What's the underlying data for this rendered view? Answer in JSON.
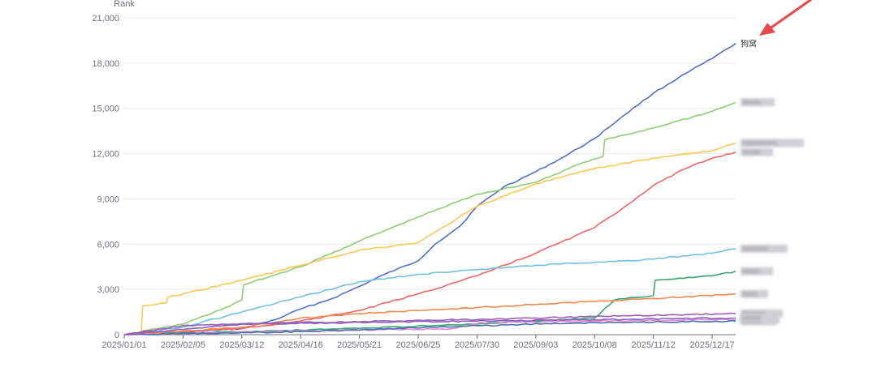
{
  "chart_data": {
    "type": "line",
    "title": "",
    "xlabel": "",
    "ylabel": "Rank",
    "ylim": [
      0,
      21000
    ],
    "yticks": [
      0,
      3000,
      6000,
      9000,
      12000,
      15000,
      18000,
      21000
    ],
    "ytick_labels": [
      "0",
      "3,000",
      "6,000",
      "9,000",
      "12,000",
      "15,000",
      "18,000",
      "21,000"
    ],
    "xlim": [
      "2025-01-01",
      "2025-12-31"
    ],
    "xticks": [
      "2025-01-01",
      "2025-02-05",
      "2025-03-12",
      "2025-04-16",
      "2025-05-21",
      "2025-06-25",
      "2025-07-30",
      "2025-09-03",
      "2025-10-08",
      "2025-11-12",
      "2025-12-17"
    ],
    "xtick_labels": [
      "2025/01/01",
      "2025/02/05",
      "2025/03/12",
      "2025/04/16",
      "2025/05/21",
      "2025/06/25",
      "2025/07/30",
      "2025/09/03",
      "2025/10/08",
      "2025/11/12",
      "2025/12/17"
    ],
    "grid": true,
    "series": [
      {
        "name": "狗窝",
        "color": "#5470c6",
        "label_visible": true,
        "points": [
          [
            "2025-01-01",
            0
          ],
          [
            "2025-02-05",
            150
          ],
          [
            "2025-03-12",
            400
          ],
          [
            "2025-04-01",
            1000
          ],
          [
            "2025-04-16",
            1700
          ],
          [
            "2025-05-05",
            2400
          ],
          [
            "2025-05-21",
            3200
          ],
          [
            "2025-06-05",
            4000
          ],
          [
            "2025-06-25",
            4900
          ],
          [
            "2025-07-05",
            6000
          ],
          [
            "2025-07-20",
            7200
          ],
          [
            "2025-07-30",
            8500
          ],
          [
            "2025-08-15",
            9800
          ],
          [
            "2025-09-03",
            10800
          ],
          [
            "2025-09-20",
            11800
          ],
          [
            "2025-10-08",
            13000
          ],
          [
            "2025-10-25",
            14500
          ],
          [
            "2025-11-12",
            16000
          ],
          [
            "2025-12-01",
            17300
          ],
          [
            "2025-12-17",
            18300
          ],
          [
            "2025-12-31",
            19300
          ]
        ]
      },
      {
        "name": "",
        "color": "#91cc75",
        "label_visible": false,
        "points": [
          [
            "2025-01-01",
            0
          ],
          [
            "2025-02-05",
            700
          ],
          [
            "2025-03-05",
            1900
          ],
          [
            "2025-03-12",
            2300
          ],
          [
            "2025-03-13",
            3300
          ],
          [
            "2025-04-16",
            4500
          ],
          [
            "2025-05-21",
            6200
          ],
          [
            "2025-06-25",
            7800
          ],
          [
            "2025-07-30",
            9300
          ],
          [
            "2025-09-03",
            10100
          ],
          [
            "2025-10-01",
            11400
          ],
          [
            "2025-10-13",
            11800
          ],
          [
            "2025-10-14",
            12900
          ],
          [
            "2025-11-12",
            13700
          ],
          [
            "2025-12-17",
            14800
          ],
          [
            "2025-12-31",
            15400
          ]
        ]
      },
      {
        "name": "",
        "color": "#fac858",
        "label_visible": false,
        "points": [
          [
            "2025-01-01",
            0
          ],
          [
            "2025-01-11",
            0
          ],
          [
            "2025-01-12",
            1900
          ],
          [
            "2025-01-26",
            2100
          ],
          [
            "2025-01-27",
            2500
          ],
          [
            "2025-02-05",
            2700
          ],
          [
            "2025-03-12",
            3600
          ],
          [
            "2025-04-16",
            4600
          ],
          [
            "2025-05-21",
            5600
          ],
          [
            "2025-06-25",
            6100
          ],
          [
            "2025-07-30",
            8500
          ],
          [
            "2025-09-03",
            10000
          ],
          [
            "2025-10-08",
            11000
          ],
          [
            "2025-11-12",
            11700
          ],
          [
            "2025-12-17",
            12200
          ],
          [
            "2025-12-31",
            12700
          ]
        ]
      },
      {
        "name": "",
        "color": "#ee6666",
        "label_visible": false,
        "points": [
          [
            "2025-01-01",
            0
          ],
          [
            "2025-03-12",
            400
          ],
          [
            "2025-04-16",
            900
          ],
          [
            "2025-05-21",
            1600
          ],
          [
            "2025-06-25",
            2700
          ],
          [
            "2025-07-30",
            3900
          ],
          [
            "2025-09-03",
            5400
          ],
          [
            "2025-10-08",
            7100
          ],
          [
            "2025-10-25",
            8400
          ],
          [
            "2025-11-12",
            9900
          ],
          [
            "2025-12-01",
            11000
          ],
          [
            "2025-12-17",
            11700
          ],
          [
            "2025-12-31",
            12100
          ]
        ]
      },
      {
        "name": "",
        "color": "#73c0de",
        "label_visible": false,
        "points": [
          [
            "2025-01-01",
            0
          ],
          [
            "2025-02-05",
            500
          ],
          [
            "2025-03-12",
            1500
          ],
          [
            "2025-04-16",
            2500
          ],
          [
            "2025-05-21",
            3500
          ],
          [
            "2025-06-25",
            4000
          ],
          [
            "2025-07-30",
            4300
          ],
          [
            "2025-09-03",
            4600
          ],
          [
            "2025-10-08",
            4800
          ],
          [
            "2025-11-12",
            5000
          ],
          [
            "2025-12-17",
            5400
          ],
          [
            "2025-12-31",
            5700
          ]
        ]
      },
      {
        "name": "",
        "color": "#3ba272",
        "label_visible": false,
        "points": [
          [
            "2025-01-01",
            0
          ],
          [
            "2025-04-16",
            300
          ],
          [
            "2025-07-30",
            700
          ],
          [
            "2025-09-03",
            900
          ],
          [
            "2025-10-08",
            1100
          ],
          [
            "2025-10-20",
            2300
          ],
          [
            "2025-11-12",
            2600
          ],
          [
            "2025-11-13",
            3600
          ],
          [
            "2025-12-17",
            3900
          ],
          [
            "2025-12-31",
            4200
          ]
        ]
      },
      {
        "name": "",
        "color": "#ee8a4e",
        "label_visible": false,
        "points": [
          [
            "2025-01-01",
            0
          ],
          [
            "2025-03-12",
            500
          ],
          [
            "2025-04-16",
            1100
          ],
          [
            "2025-05-21",
            1400
          ],
          [
            "2025-06-25",
            1600
          ],
          [
            "2025-07-30",
            1800
          ],
          [
            "2025-09-03",
            2000
          ],
          [
            "2025-10-08",
            2200
          ],
          [
            "2025-11-12",
            2400
          ],
          [
            "2025-12-31",
            2700
          ]
        ]
      },
      {
        "name": "",
        "color": "#9a60b4",
        "label_visible": false,
        "points": [
          [
            "2025-01-01",
            0
          ],
          [
            "2025-02-05",
            600
          ],
          [
            "2025-04-16",
            800
          ],
          [
            "2025-07-30",
            1000
          ],
          [
            "2025-10-08",
            1200
          ],
          [
            "2025-12-31",
            1400
          ]
        ]
      },
      {
        "name": "",
        "color": "#e58ad1",
        "label_visible": false,
        "points": [
          [
            "2025-01-01",
            0
          ],
          [
            "2025-05-21",
            300
          ],
          [
            "2025-07-15",
            400
          ],
          [
            "2025-08-01",
            800
          ],
          [
            "2025-10-08",
            900
          ],
          [
            "2025-12-31",
            1000
          ]
        ]
      },
      {
        "name": "",
        "color": "#4a6fb0",
        "label_visible": false,
        "points": [
          [
            "2025-01-01",
            0
          ],
          [
            "2025-04-16",
            200
          ],
          [
            "2025-07-30",
            600
          ],
          [
            "2025-10-08",
            800
          ],
          [
            "2025-12-31",
            900
          ]
        ]
      },
      {
        "name": "",
        "color": "#8b5fbf",
        "label_visible": false,
        "points": [
          [
            "2025-01-01",
            0
          ],
          [
            "2025-03-12",
            700
          ],
          [
            "2025-07-30",
            900
          ],
          [
            "2025-12-31",
            1100
          ]
        ]
      }
    ]
  }
}
